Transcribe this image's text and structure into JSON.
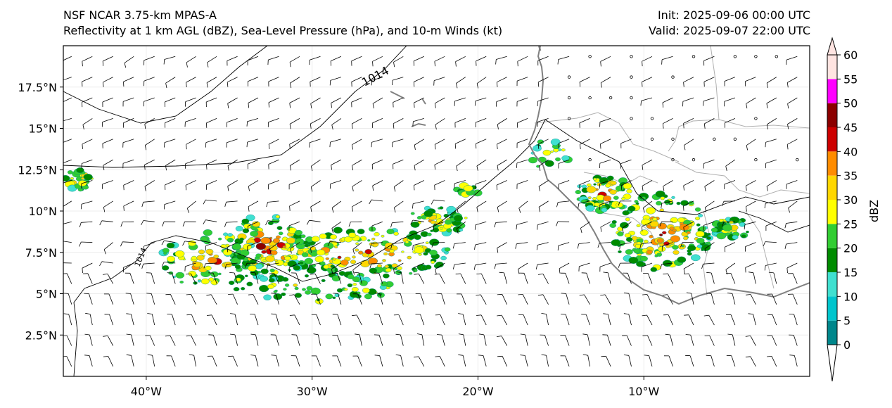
{
  "header": {
    "model": "NSF NCAR 3.75-km MPAS-A",
    "fields": "Reflectivity at 1 km AGL (dBZ), Sea-Level Pressure (hPa), and 10-m Winds (kt)",
    "init": "Init: 2025-09-06 00:00 UTC",
    "valid": "Valid: 2025-09-07 22:00 UTC"
  },
  "map": {
    "lon_range": [
      -45,
      0
    ],
    "lat_range": [
      0,
      20
    ],
    "lat_ticks": [
      {
        "value": 2.5,
        "label": "2.5°N"
      },
      {
        "value": 5,
        "label": "5°N"
      },
      {
        "value": 7.5,
        "label": "7.5°N"
      },
      {
        "value": 10,
        "label": "10°N"
      },
      {
        "value": 12.5,
        "label": "12.5°N"
      },
      {
        "value": 15,
        "label": "15°N"
      },
      {
        "value": 17.5,
        "label": "17.5°N"
      }
    ],
    "lon_ticks": [
      {
        "value": -40,
        "label": "40°W"
      },
      {
        "value": -30,
        "label": "30°W"
      },
      {
        "value": -20,
        "label": "20°W"
      },
      {
        "value": -10,
        "label": "10°W"
      }
    ],
    "isobar_label": "1014",
    "isobar_label_2": "1014"
  },
  "colorbar": {
    "label": "dBZ",
    "ticks": [
      "0",
      "5",
      "10",
      "15",
      "20",
      "25",
      "30",
      "35",
      "40",
      "45",
      "50",
      "55",
      "60"
    ],
    "colors": [
      "#ffffff",
      "#00868b",
      "#00c5cd",
      "#40e0d0",
      "#008b00",
      "#32cd32",
      "#ffff00",
      "#ffd700",
      "#ff8c00",
      "#cd0000",
      "#8b0000",
      "#ff00ff",
      "#ffe4e1"
    ]
  },
  "colors": {
    "coast": "#808080",
    "border": "#b0b0b0",
    "isobar": "#000000",
    "grid": "#e6e6e6"
  }
}
